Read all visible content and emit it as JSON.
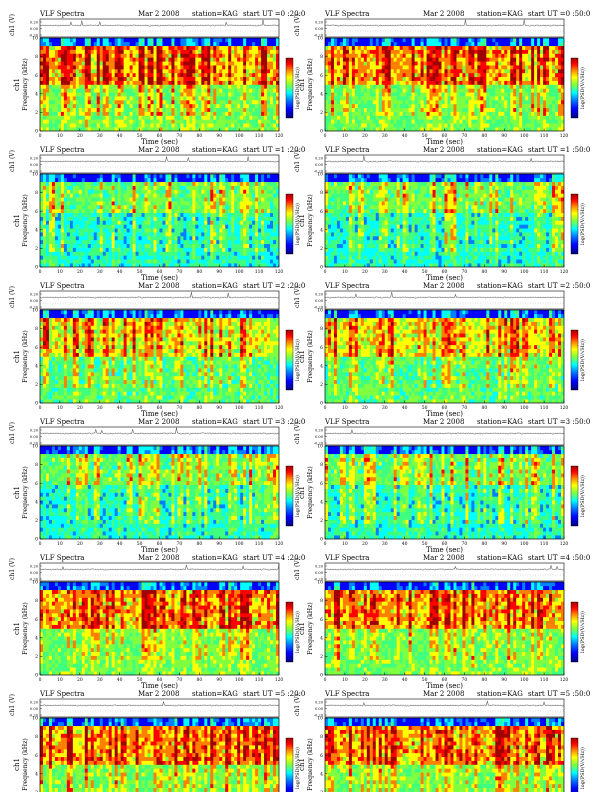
{
  "chart_data": [
    {
      "type": "heatmap",
      "title": "VLF Spectra",
      "date": "Mar 2 2008",
      "station": "station=KAG",
      "start_label": "start UT =0 :20:0",
      "channel": "ch1",
      "xlabel": "Time (sec)",
      "ylabel": "Frequency (kHz)",
      "amp_label": "ch1 (V)",
      "amp_ticks": [
        "0.20",
        "0.00",
        "-0.20"
      ],
      "cbar_label": "log(PSD(V/√Hz))",
      "xlim": [
        0,
        120
      ],
      "x_ticks": [
        0,
        10,
        20,
        30,
        40,
        50,
        60,
        70,
        80,
        90,
        100,
        110,
        120
      ],
      "ylim": [
        0,
        10
      ],
      "y_ticks": [
        0,
        2,
        4,
        6,
        8,
        10
      ],
      "band_khz": [
        5,
        9
      ],
      "intensity": "strong"
    },
    {
      "type": "heatmap",
      "title": "VLF Spectra",
      "date": "Mar 2 2008",
      "station": "station=KAG",
      "start_label": "start UT =0 :50:0",
      "channel": "ch1",
      "xlabel": "Time (sec)",
      "ylabel": "Frequency (kHz)",
      "amp_label": "ch1 (V)",
      "amp_ticks": [
        "0.20",
        "0.00",
        "-0.20"
      ],
      "cbar_label": "log(PSD(V/√Hz))",
      "xlim": [
        0,
        120
      ],
      "x_ticks": [
        0,
        10,
        20,
        30,
        40,
        50,
        60,
        70,
        80,
        90,
        100,
        110,
        120
      ],
      "ylim": [
        0,
        10
      ],
      "y_ticks": [
        0,
        2,
        4,
        6,
        8,
        10
      ],
      "band_khz": [
        5,
        9
      ],
      "intensity": "strong"
    },
    {
      "type": "heatmap",
      "title": "VLF Spectra",
      "date": "Mar 2 2008",
      "station": "station=KAG",
      "start_label": "start UT =1 :20:0",
      "channel": "ch1",
      "xlabel": "Time (sec)",
      "ylabel": "Frequency (kHz)",
      "amp_label": "ch1 (V)",
      "amp_ticks": [
        "0.20",
        "0.00",
        "-0.20"
      ],
      "cbar_label": "log(PSD(V/√Hz))",
      "xlim": [
        0,
        120
      ],
      "x_ticks": [
        0,
        10,
        20,
        30,
        40,
        50,
        60,
        70,
        80,
        90,
        100,
        110,
        120
      ],
      "ylim": [
        0,
        10
      ],
      "y_ticks": [
        0,
        2,
        4,
        6,
        8,
        10
      ],
      "band_khz": [
        6,
        9
      ],
      "intensity": "weak"
    },
    {
      "type": "heatmap",
      "title": "VLF Spectra",
      "date": "Mar 2 2008",
      "station": "station=KAG",
      "start_label": "start UT =1 :50:0",
      "channel": "ch1",
      "xlabel": "Time (sec)",
      "ylabel": "Frequency (kHz)",
      "amp_label": "ch1 (V)",
      "amp_ticks": [
        "0.20",
        "0.00",
        "-0.20"
      ],
      "cbar_label": "log(PSD(V/√Hz))",
      "xlim": [
        0,
        120
      ],
      "x_ticks": [
        0,
        10,
        20,
        30,
        40,
        50,
        60,
        70,
        80,
        90,
        100,
        110,
        120
      ],
      "ylim": [
        0,
        10
      ],
      "y_ticks": [
        0,
        2,
        4,
        6,
        8,
        10
      ],
      "band_khz": [
        6,
        9
      ],
      "intensity": "weak"
    },
    {
      "type": "heatmap",
      "title": "VLF Spectra",
      "date": "Mar 2 2008",
      "station": "station=KAG",
      "start_label": "start UT =2 :20:0",
      "channel": "ch1",
      "xlabel": "Time (sec)",
      "ylabel": "Frequency (kHz)",
      "amp_label": "ch1 (V)",
      "amp_ticks": [
        "0.20",
        "0.00",
        "-0.20"
      ],
      "cbar_label": "log(PSD(V/√Hz))",
      "xlim": [
        0,
        120
      ],
      "x_ticks": [
        0,
        10,
        20,
        30,
        40,
        50,
        60,
        70,
        80,
        90,
        100,
        110,
        120
      ],
      "ylim": [
        0,
        10
      ],
      "y_ticks": [
        0,
        2,
        4,
        6,
        8,
        10
      ],
      "band_khz": [
        5,
        9
      ],
      "intensity": "medium"
    },
    {
      "type": "heatmap",
      "title": "VLF Spectra",
      "date": "Mar 2 2008",
      "station": "station=KAG",
      "start_label": "start UT =2 :50:0",
      "channel": "ch1",
      "xlabel": "Time (sec)",
      "ylabel": "Frequency (kHz)",
      "amp_label": "ch1 (V)",
      "amp_ticks": [
        "0.20",
        "0.00",
        "-0.20"
      ],
      "cbar_label": "log(PSD(V/√Hz))",
      "xlim": [
        0,
        120
      ],
      "x_ticks": [
        0,
        10,
        20,
        30,
        40,
        50,
        60,
        70,
        80,
        90,
        100,
        110,
        120
      ],
      "ylim": [
        0,
        10
      ],
      "y_ticks": [
        0,
        2,
        4,
        6,
        8,
        10
      ],
      "band_khz": [
        5,
        9
      ],
      "intensity": "medium"
    },
    {
      "type": "heatmap",
      "title": "VLF Spectra",
      "date": "Mar 2 2008",
      "station": "station=KAG",
      "start_label": "start UT =3 :20:0",
      "channel": "ch1",
      "xlabel": "Time (sec)",
      "ylabel": "Frequency (kHz)",
      "amp_label": "ch1 (V)",
      "amp_ticks": [
        "0.20",
        "0.00",
        "-0.20"
      ],
      "cbar_label": "log(PSD(V/√Hz))",
      "xlim": [
        0,
        120
      ],
      "x_ticks": [
        0,
        10,
        20,
        30,
        40,
        50,
        60,
        70,
        80,
        90,
        100,
        110,
        120
      ],
      "ylim": [
        0,
        10
      ],
      "y_ticks": [
        0,
        2,
        4,
        6,
        8,
        10
      ],
      "band_khz": [
        6,
        9
      ],
      "intensity": "weak"
    },
    {
      "type": "heatmap",
      "title": "VLF Spectra",
      "date": "Mar 2 2008",
      "station": "station=KAG",
      "start_label": "start UT =3 :50:0",
      "channel": "ch1",
      "xlabel": "Time (sec)",
      "ylabel": "Frequency (kHz)",
      "amp_label": "ch1 (V)",
      "amp_ticks": [
        "0.20",
        "0.00",
        "-0.20"
      ],
      "cbar_label": "log(PSD(V/√Hz))",
      "xlim": [
        0,
        120
      ],
      "x_ticks": [
        0,
        10,
        20,
        30,
        40,
        50,
        60,
        70,
        80,
        90,
        100,
        110,
        120
      ],
      "ylim": [
        0,
        10
      ],
      "y_ticks": [
        0,
        2,
        4,
        6,
        8,
        10
      ],
      "band_khz": [
        6,
        9
      ],
      "intensity": "weak"
    },
    {
      "type": "heatmap",
      "title": "VLF Spectra",
      "date": "Mar 2 2008",
      "station": "station=KAG",
      "start_label": "start UT =4 :20:0",
      "channel": "ch1",
      "xlabel": "Time (sec)",
      "ylabel": "Frequency (kHz)",
      "amp_label": "ch1 (V)",
      "amp_ticks": [
        "0.20",
        "0.00",
        "-0.20"
      ],
      "cbar_label": "log(PSD(V/√Hz))",
      "xlim": [
        0,
        120
      ],
      "x_ticks": [
        0,
        10,
        20,
        30,
        40,
        50,
        60,
        70,
        80,
        90,
        100,
        110,
        120
      ],
      "ylim": [
        0,
        10
      ],
      "y_ticks": [
        0,
        2,
        4,
        6,
        8,
        10
      ],
      "band_khz": [
        5,
        9
      ],
      "intensity": "strong"
    },
    {
      "type": "heatmap",
      "title": "VLF Spectra",
      "date": "Mar 2 2008",
      "station": "station=KAG",
      "start_label": "start UT =4 :50:0",
      "channel": "ch1",
      "xlabel": "Time (sec)",
      "ylabel": "Frequency (kHz)",
      "amp_label": "ch1 (V)",
      "amp_ticks": [
        "0.20",
        "0.00",
        "-0.20"
      ],
      "cbar_label": "log(PSD(V/√Hz))",
      "xlim": [
        0,
        120
      ],
      "x_ticks": [
        0,
        10,
        20,
        30,
        40,
        50,
        60,
        70,
        80,
        90,
        100,
        110,
        120
      ],
      "ylim": [
        0,
        10
      ],
      "y_ticks": [
        0,
        2,
        4,
        6,
        8,
        10
      ],
      "band_khz": [
        5,
        9
      ],
      "intensity": "strong"
    },
    {
      "type": "heatmap",
      "title": "VLF Spectra",
      "date": "Mar 2 2008",
      "station": "station=KAG",
      "start_label": "start UT =5 :20:0",
      "channel": "ch1",
      "xlabel": "Time (sec)",
      "ylabel": "Frequency (kHz)",
      "amp_label": "ch1 (V)",
      "amp_ticks": [
        "0.20",
        "0.00",
        "-0.20"
      ],
      "cbar_label": "log(PSD(V/√Hz))",
      "xlim": [
        0,
        120
      ],
      "x_ticks": [
        0,
        10,
        20,
        30,
        40,
        50,
        60,
        70,
        80,
        90,
        100,
        110,
        120
      ],
      "ylim": [
        0,
        10
      ],
      "y_ticks": [
        0,
        2,
        4,
        6,
        8,
        10
      ],
      "band_khz": [
        5,
        9
      ],
      "intensity": "strong"
    },
    {
      "type": "heatmap",
      "title": "VLF Spectra",
      "date": "Mar 2 2008",
      "station": "station=KAG",
      "start_label": "start UT =5 :50:0",
      "channel": "ch1",
      "xlabel": "Time (sec)",
      "ylabel": "Frequency (kHz)",
      "amp_label": "ch1 (V)",
      "amp_ticks": [
        "0.20",
        "0.00",
        "-0.20"
      ],
      "cbar_label": "log(PSD(V/√Hz))",
      "xlim": [
        0,
        120
      ],
      "x_ticks": [
        0,
        10,
        20,
        30,
        40,
        50,
        60,
        70,
        80,
        90,
        100,
        110,
        120
      ],
      "ylim": [
        0,
        10
      ],
      "y_ticks": [
        0,
        2,
        4,
        6,
        8,
        10
      ],
      "band_khz": [
        5,
        9
      ],
      "intensity": "strong"
    }
  ],
  "colorscale": [
    "#00007f",
    "#0000ff",
    "#007fff",
    "#00ffff",
    "#3fff7f",
    "#7fff3f",
    "#ffff00",
    "#ff7f00",
    "#ff0000",
    "#9f0000"
  ],
  "colors": {
    "axis": "#000000",
    "trace": "#333333"
  }
}
